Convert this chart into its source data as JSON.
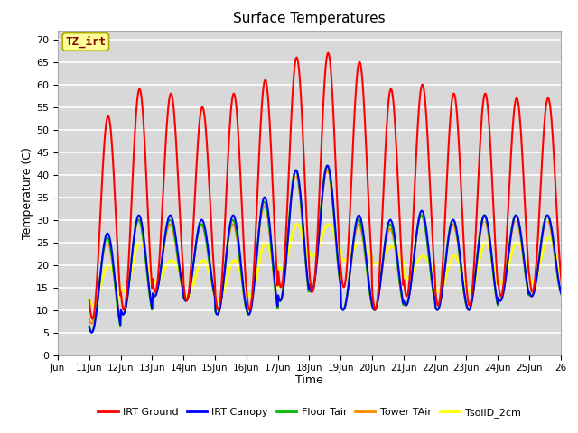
{
  "title": "Surface Temperatures",
  "xlabel": "Time",
  "ylabel": "Temperature (C)",
  "annotation_text": "TZ_irt",
  "annotation_color": "#880000",
  "annotation_bg": "#ffff99",
  "annotation_border": "#aaaa00",
  "ylim": [
    0,
    72
  ],
  "yticks": [
    0,
    5,
    10,
    15,
    20,
    25,
    30,
    35,
    40,
    45,
    50,
    55,
    60,
    65,
    70
  ],
  "x_labels": [
    "Jun",
    "11Jun",
    "12Jun",
    "13Jun",
    "14Jun",
    "15Jun",
    "16Jun",
    "17Jun",
    "18Jun",
    "19Jun",
    "20Jun",
    "21Jun",
    "22Jun",
    "23Jun",
    "24Jun",
    "25Jun",
    "26"
  ],
  "bg_color": "#d8d8d8",
  "fig_bg": "#ffffff",
  "ig_peaks": [
    53,
    59,
    58,
    55,
    58,
    61,
    66,
    67,
    65,
    59,
    60,
    58,
    58,
    57,
    57
  ],
  "ig_troughs": [
    8,
    10,
    14,
    12,
    10,
    10,
    15,
    14,
    15,
    10,
    13,
    11,
    11,
    13,
    14
  ],
  "ic_peaks": [
    27,
    31,
    31,
    30,
    31,
    35,
    41,
    42,
    31,
    30,
    32,
    30,
    31,
    31,
    31
  ],
  "ic_troughs": [
    5,
    9,
    13,
    12,
    9,
    9,
    12,
    14,
    10,
    10,
    11,
    10,
    10,
    12,
    13
  ],
  "ft_peaks": [
    26,
    30,
    30,
    29,
    30,
    34,
    41,
    42,
    30,
    29,
    31,
    30,
    31,
    31,
    31
  ],
  "ft_troughs": [
    5,
    9,
    13,
    12,
    9,
    9,
    12,
    14,
    10,
    10,
    11,
    10,
    10,
    12,
    13
  ],
  "ta_peaks": [
    25,
    30,
    29,
    29,
    29,
    33,
    40,
    41,
    29,
    28,
    31,
    29,
    30,
    30,
    30
  ],
  "ta_troughs": [
    7,
    9,
    13,
    12,
    9,
    9,
    12,
    14,
    10,
    10,
    11,
    10,
    10,
    12,
    13
  ],
  "ts_peaks": [
    20,
    25,
    21,
    21,
    21,
    25,
    29,
    29,
    25,
    24,
    22,
    22,
    25,
    25,
    26
  ],
  "ts_troughs": [
    11,
    14,
    16,
    13,
    12,
    13,
    19,
    22,
    21,
    20,
    17,
    14,
    14,
    16,
    16
  ],
  "series_colors": [
    "#ff0000",
    "#0000ff",
    "#00bb00",
    "#ff8800",
    "#ffff00"
  ],
  "series_lw": [
    1.5,
    1.5,
    1.5,
    1.5,
    2.0
  ],
  "series_names": [
    "IRT Ground",
    "IRT Canopy",
    "Floor Tair",
    "Tower TAir",
    "TsoilD_2cm"
  ]
}
